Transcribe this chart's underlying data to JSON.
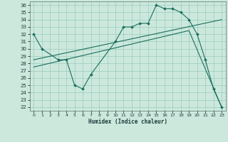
{
  "xlabel": "Humidex (Indice chaleur)",
  "bg_color": "#cce8dd",
  "line_color": "#1a6e5e",
  "grid_color": "#99ccbb",
  "xlim": [
    -0.5,
    23.5
  ],
  "ylim": [
    21.5,
    36.5
  ],
  "xticks": [
    0,
    1,
    2,
    3,
    4,
    5,
    6,
    7,
    8,
    9,
    10,
    11,
    12,
    13,
    14,
    15,
    16,
    17,
    18,
    19,
    20,
    21,
    22,
    23
  ],
  "yticks": [
    22,
    23,
    24,
    25,
    26,
    27,
    28,
    29,
    30,
    31,
    32,
    33,
    34,
    35,
    36
  ],
  "series1_x": [
    0,
    1,
    3,
    4,
    5,
    6,
    7,
    10,
    11,
    12,
    13,
    14,
    15,
    16,
    17,
    18,
    19,
    20,
    21,
    22,
    23
  ],
  "series1_y": [
    32,
    30,
    28.5,
    28.5,
    25,
    24.5,
    26.5,
    31,
    33,
    33,
    33.5,
    33.5,
    36,
    35.5,
    35.5,
    35,
    34,
    32,
    28.5,
    24.5,
    22
  ],
  "series2_x": [
    0,
    23
  ],
  "series2_y": [
    28.5,
    34.0
  ],
  "series3_x": [
    0,
    19,
    23
  ],
  "series3_y": [
    27.5,
    32.5,
    22.0
  ]
}
